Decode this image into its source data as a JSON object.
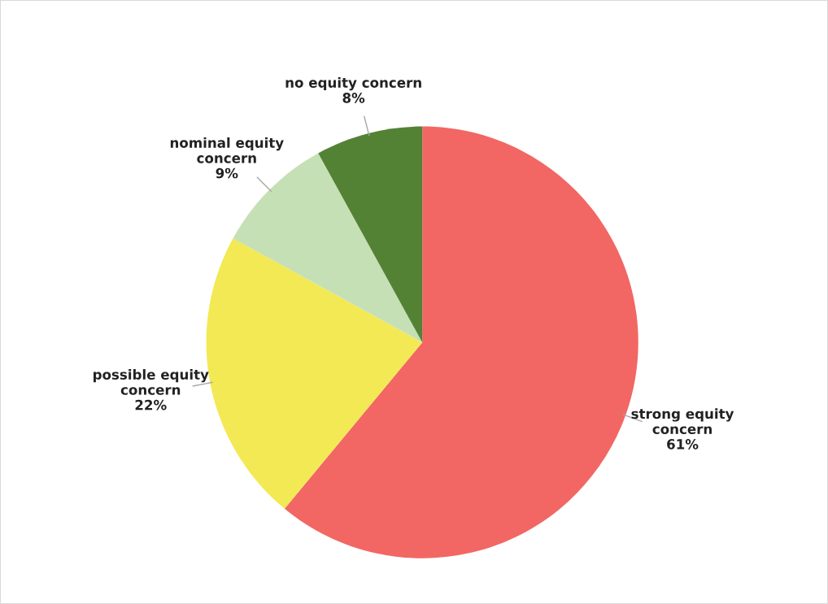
{
  "chart_data": {
    "type": "pie",
    "categories": [
      "strong equity\nconcern",
      "possible equity\nconcern",
      "nominal equity\nconcern",
      "no equity concern"
    ],
    "values": [
      61,
      22,
      9,
      8
    ],
    "colors": [
      "#f26763",
      "#f2e955",
      "#c6e0b5",
      "#548235"
    ],
    "value_labels": [
      "61%",
      "22%",
      "9%",
      "8%"
    ],
    "legend": false
  }
}
